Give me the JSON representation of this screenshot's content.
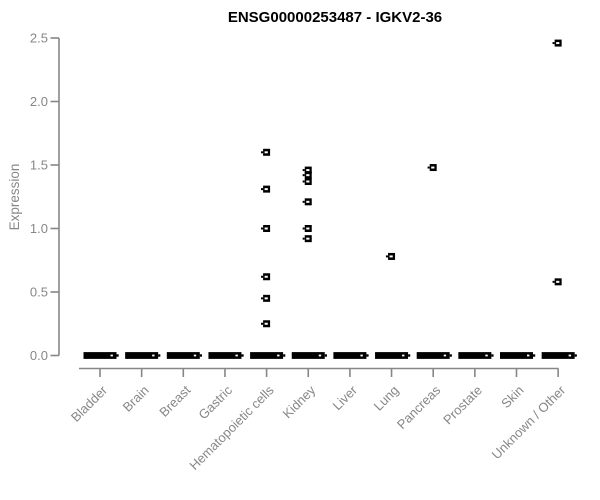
{
  "chart_data": {
    "type": "scatter",
    "subtype": "strip-plot",
    "title": "ENSG00000253487 - IGKV2-36",
    "xlabel": "",
    "ylabel": "Expression",
    "ylim": [
      0,
      2.5
    ],
    "yticks": [
      "0.0",
      "0.5",
      "1.0",
      "1.5",
      "2.0",
      "2.5"
    ],
    "grid": false,
    "legend": null,
    "marker": "black-open-square",
    "colors": {
      "axis": "#878787",
      "tick_label": "#878787",
      "title": "#000000",
      "marker": "#000000",
      "background": "#ffffff"
    },
    "categories": [
      "Bladder",
      "Brain",
      "Breast",
      "Gastric",
      "Hematopoietic cells",
      "Kidney",
      "Liver",
      "Lung",
      "Pancreas",
      "Prostate",
      "Skin",
      "Unknown / Other"
    ],
    "values_by_category": [
      {
        "category": "Bladder",
        "values": [],
        "zero_cluster": true
      },
      {
        "category": "Brain",
        "values": [],
        "zero_cluster": true
      },
      {
        "category": "Breast",
        "values": [],
        "zero_cluster": true
      },
      {
        "category": "Gastric",
        "values": [],
        "zero_cluster": true
      },
      {
        "category": "Hematopoietic cells",
        "values": [
          1.6,
          1.31,
          1.0,
          0.62,
          0.45,
          0.25
        ],
        "zero_cluster": true
      },
      {
        "category": "Kidney",
        "values": [
          1.46,
          1.42,
          1.37,
          1.21,
          1.0,
          0.92
        ],
        "zero_cluster": true
      },
      {
        "category": "Liver",
        "values": [],
        "zero_cluster": true
      },
      {
        "category": "Lung",
        "values": [
          0.78
        ],
        "zero_cluster": true
      },
      {
        "category": "Pancreas",
        "values": [
          1.48
        ],
        "zero_cluster": true
      },
      {
        "category": "Prostate",
        "values": [],
        "zero_cluster": true
      },
      {
        "category": "Skin",
        "values": [],
        "zero_cluster": true
      },
      {
        "category": "Unknown / Other",
        "values": [
          2.46,
          0.58
        ],
        "zero_cluster": true
      }
    ]
  }
}
